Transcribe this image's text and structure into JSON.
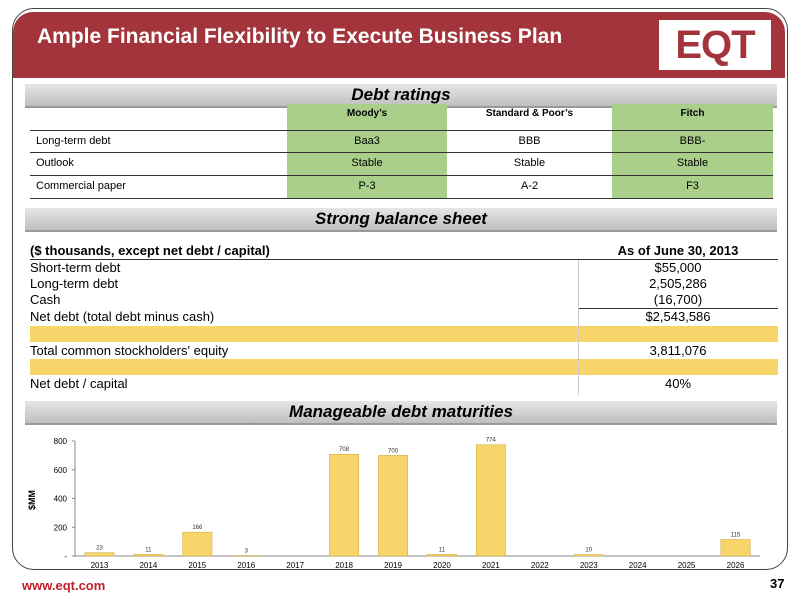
{
  "header": {
    "title": "Ample Financial Flexibility to Execute Business Plan",
    "logo": "EQT"
  },
  "debt_ratings": {
    "title": "Debt ratings",
    "columns": [
      "Moody’s",
      "Standard & Poor’s",
      "Fitch"
    ],
    "rows": [
      [
        "Long-term debt",
        "Baa3",
        "BBB",
        "BBB-"
      ],
      [
        "Outlook",
        "Stable",
        "Stable",
        "Stable"
      ],
      [
        "Commercial paper",
        "P-3",
        "A-2",
        "F3"
      ]
    ]
  },
  "balance_sheet": {
    "title": "Strong balance sheet",
    "header": [
      "($ thousands, except net debt / capital)",
      "As of June 30, 2013"
    ],
    "rows": [
      [
        "Short-term debt",
        "$55,000"
      ],
      [
        "Long-term debt",
        "2,505,286"
      ],
      [
        "Cash",
        "(16,700)"
      ],
      [
        "Net debt (total debt minus cash)",
        "$2,543,586"
      ],
      [
        "Total common stockholders' equity",
        "3,811,076"
      ],
      [
        "Net debt / capital",
        "40%"
      ]
    ]
  },
  "chart_data": {
    "type": "bar",
    "title": "Manageable debt maturities",
    "y_label": "$MM",
    "categories": [
      "2013",
      "2014",
      "2015",
      "2016",
      "2017",
      "2018",
      "2019",
      "2020",
      "2021",
      "2022",
      "2023",
      "2024",
      "2025",
      "2026"
    ],
    "values": [
      23,
      11,
      166,
      3,
      null,
      708,
      700,
      11,
      774,
      null,
      10,
      null,
      null,
      115
    ],
    "color": "#f8d56b",
    "ylim": [
      0,
      800
    ],
    "yticks": [
      {
        "value": 0,
        "label": "-"
      },
      200,
      400,
      600,
      800
    ]
  },
  "footer": {
    "url": "www.eqt.com",
    "page": "37"
  }
}
